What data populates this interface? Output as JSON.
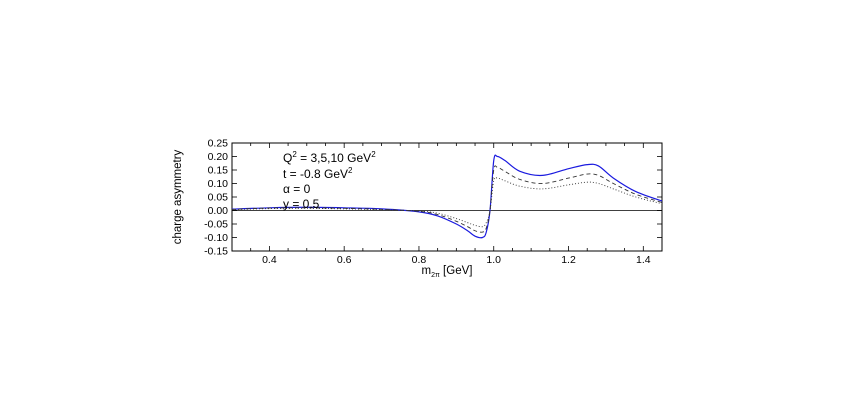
{
  "chart_data": {
    "type": "line",
    "title": "",
    "xlabel": {
      "main": "m",
      "sub": "2π",
      "unit": " [GeV]"
    },
    "ylabel": "charge asymmetry",
    "xlim": [
      0.3,
      1.45
    ],
    "ylim": [
      -0.15,
      0.25
    ],
    "x_ticks": [
      0.4,
      0.6,
      0.8,
      1.0,
      1.2,
      1.4
    ],
    "x_tick_labels": [
      "0.4",
      "0.6",
      "0.8",
      "1.0",
      "1.2",
      "1.4"
    ],
    "y_ticks": [
      -0.15,
      -0.1,
      -0.05,
      0.0,
      0.05,
      0.1,
      0.15,
      0.2,
      0.25
    ],
    "y_tick_labels": [
      "-0.15",
      "-0.10",
      "-0.05",
      "0.00",
      "0.05",
      "0.10",
      "0.15",
      "0.20",
      "0.25"
    ],
    "zero_line": true,
    "grid": false,
    "annotations": [
      {
        "pre": "Q",
        "sup1": "2",
        "mid": " = 3,5,10 GeV",
        "sup2": "2"
      },
      {
        "pre": "t = -0.8 GeV",
        "sup1": "2",
        "mid": "",
        "sup2": ""
      },
      {
        "pre": "α = 0",
        "sup1": "",
        "mid": "",
        "sup2": ""
      },
      {
        "pre": "y = 0.5",
        "sup1": "",
        "mid": "",
        "sup2": ""
      }
    ],
    "series": [
      {
        "style": "solid",
        "color": "#1a1adf",
        "x": [
          0.3,
          0.4,
          0.5,
          0.6,
          0.7,
          0.8,
          0.85,
          0.9,
          0.93,
          0.95,
          0.97,
          0.98,
          0.99,
          1.0,
          1.01,
          1.03,
          1.07,
          1.13,
          1.2,
          1.25,
          1.28,
          1.32,
          1.38,
          1.45
        ],
        "y": [
          0.005,
          0.01,
          0.012,
          0.01,
          0.006,
          -0.005,
          -0.02,
          -0.05,
          -0.075,
          -0.095,
          -0.1,
          -0.08,
          0.0,
          0.185,
          0.2,
          0.185,
          0.145,
          0.13,
          0.155,
          0.17,
          0.165,
          0.12,
          0.07,
          0.035
        ]
      },
      {
        "style": "dashed",
        "color": "#333333",
        "x": [
          0.3,
          0.4,
          0.5,
          0.6,
          0.7,
          0.8,
          0.85,
          0.9,
          0.93,
          0.95,
          0.97,
          0.98,
          0.99,
          1.0,
          1.01,
          1.03,
          1.07,
          1.13,
          1.2,
          1.25,
          1.28,
          1.32,
          1.38,
          1.45
        ],
        "y": [
          0.004,
          0.009,
          0.01,
          0.008,
          0.004,
          -0.003,
          -0.015,
          -0.04,
          -0.06,
          -0.075,
          -0.08,
          -0.065,
          0.0,
          0.15,
          0.16,
          0.145,
          0.115,
          0.1,
          0.12,
          0.135,
          0.13,
          0.1,
          0.06,
          0.03
        ]
      },
      {
        "style": "dotted",
        "color": "#333333",
        "x": [
          0.3,
          0.4,
          0.5,
          0.6,
          0.7,
          0.8,
          0.85,
          0.9,
          0.93,
          0.95,
          0.97,
          0.98,
          0.99,
          1.0,
          1.01,
          1.03,
          1.07,
          1.13,
          1.2,
          1.25,
          1.28,
          1.32,
          1.38,
          1.45
        ],
        "y": [
          0.003,
          0.007,
          0.008,
          0.006,
          0.003,
          -0.002,
          -0.01,
          -0.03,
          -0.045,
          -0.055,
          -0.06,
          -0.045,
          0.0,
          0.11,
          0.12,
          0.11,
          0.09,
          0.08,
          0.095,
          0.105,
          0.1,
          0.08,
          0.05,
          0.025
        ]
      }
    ]
  }
}
